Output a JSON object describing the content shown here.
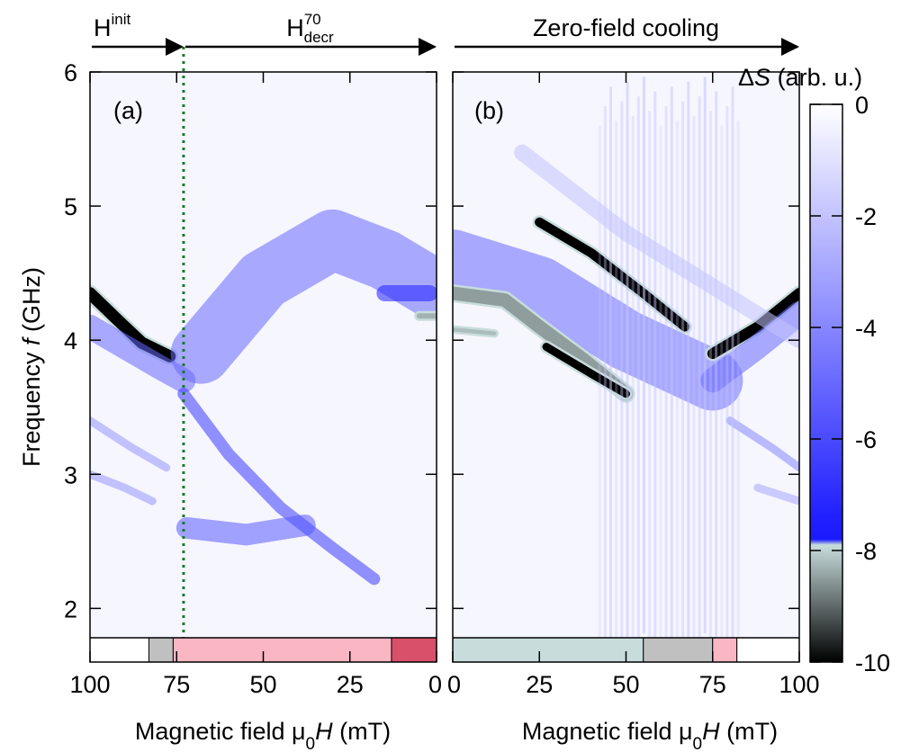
{
  "chart_data": [
    {
      "type": "heatmap",
      "panel_label": "(a)",
      "x_direction": "decreasing",
      "xlabel": "Magnetic field μ0H (mT)",
      "ylabel": "Frequency f (GHz)",
      "xlim": [
        100,
        0
      ],
      "ylim": [
        1.6,
        6.0
      ],
      "x_ticks": [
        "100",
        "75",
        "50",
        "25",
        "0"
      ],
      "x_tick_values": [
        100,
        75,
        50,
        25,
        0
      ],
      "y_ticks": [
        "2",
        "3",
        "4",
        "5",
        "6"
      ],
      "y_tick_values": [
        2,
        3,
        4,
        5,
        6
      ],
      "regime_labels": [
        {
          "text": "H",
          "sup": "init",
          "sub": "",
          "x_from": 100,
          "x_to": 73
        },
        {
          "text": "H",
          "sup": "70",
          "sub": "decr",
          "x_from": 73,
          "x_to": 0
        }
      ],
      "vline_at": 73,
      "vline_color": "#1a7a2a",
      "state_bar": [
        {
          "from": 100,
          "to": 83,
          "color": "#ffffff"
        },
        {
          "from": 83,
          "to": 76,
          "color": "#c0c0c0"
        },
        {
          "from": 76,
          "to": 13,
          "color": "#fbb6c4"
        },
        {
          "from": 13,
          "to": 0,
          "color": "#d9506a"
        }
      ],
      "features": [
        {
          "kind": "ridge",
          "points": [
            [
              100,
              4.35
            ],
            [
              92,
              4.15
            ],
            [
              85,
              3.98
            ],
            [
              77,
              3.88
            ]
          ],
          "delta_s": -10,
          "width": 0.09
        },
        {
          "kind": "ridge",
          "points": [
            [
              100,
              4.1
            ],
            [
              90,
              3.95
            ],
            [
              80,
              3.8
            ],
            [
              73,
              3.7
            ]
          ],
          "delta_s": -5,
          "width": 0.18
        },
        {
          "kind": "ridge",
          "points": [
            [
              73,
              3.6
            ],
            [
              60,
              3.15
            ],
            [
              45,
              2.75
            ],
            [
              30,
              2.45
            ],
            [
              18,
              2.22
            ]
          ],
          "delta_s": -6.5,
          "width": 0.09
        },
        {
          "kind": "ridge",
          "points": [
            [
              72,
              2.6
            ],
            [
              55,
              2.55
            ],
            [
              38,
              2.62
            ]
          ],
          "delta_s": -5.5,
          "width": 0.16
        },
        {
          "kind": "ridge",
          "points": [
            [
              68,
              3.9
            ],
            [
              50,
              4.45
            ],
            [
              30,
              4.75
            ],
            [
              15,
              4.6
            ],
            [
              2,
              4.4
            ]
          ],
          "delta_s": -5,
          "width": 0.45
        },
        {
          "kind": "ridge",
          "points": [
            [
              15,
              4.35
            ],
            [
              8,
              4.35
            ],
            [
              2,
              4.35
            ]
          ],
          "delta_s": -7.5,
          "width": 0.12
        },
        {
          "kind": "ridge",
          "points": [
            [
              5,
              4.18
            ],
            [
              0,
              4.18
            ]
          ],
          "delta_s": -8.3,
          "width": 0.04
        },
        {
          "kind": "ridge",
          "points": [
            [
              100,
              3.4
            ],
            [
              88,
              3.2
            ],
            [
              78,
              3.05
            ]
          ],
          "delta_s": -3.5,
          "width": 0.06
        },
        {
          "kind": "ridge",
          "points": [
            [
              100,
              3.0
            ],
            [
              90,
              2.9
            ],
            [
              82,
              2.8
            ]
          ],
          "delta_s": -3.5,
          "width": 0.06
        }
      ]
    },
    {
      "type": "heatmap",
      "panel_label": "(b)",
      "x_direction": "increasing",
      "xlabel": "Magnetic field μ0H (mT)",
      "ylabel": "",
      "xlim": [
        0,
        100
      ],
      "ylim": [
        1.6,
        6.0
      ],
      "x_ticks": [
        "0",
        "25",
        "50",
        "75",
        "100"
      ],
      "x_tick_values": [
        0,
        25,
        50,
        75,
        100
      ],
      "y_ticks": [
        "2",
        "3",
        "4",
        "5",
        "6"
      ],
      "y_tick_values": [
        2,
        3,
        4,
        5,
        6
      ],
      "regime_labels": [
        {
          "text": "Zero-field cooling",
          "sup": "",
          "sub": "",
          "x_from": 0,
          "x_to": 100
        }
      ],
      "state_bar": [
        {
          "from": 0,
          "to": 55,
          "color": "#c8dcdc"
        },
        {
          "from": 55,
          "to": 75,
          "color": "#c0c0c0"
        },
        {
          "from": 75,
          "to": 82,
          "color": "#fbb6c4"
        },
        {
          "from": 82,
          "to": 100,
          "color": "#ffffff"
        }
      ],
      "features": [
        {
          "kind": "ridge",
          "points": [
            [
              0,
              4.6
            ],
            [
              25,
              4.4
            ],
            [
              50,
              4.0
            ],
            [
              75,
              3.7
            ]
          ],
          "delta_s": -5,
          "width": 0.45
        },
        {
          "kind": "ridge",
          "points": [
            [
              25,
              4.88
            ],
            [
              40,
              4.65
            ],
            [
              55,
              4.35
            ],
            [
              67,
              4.1
            ]
          ],
          "delta_s": -10,
          "width": 0.07
        },
        {
          "kind": "ridge",
          "points": [
            [
              0,
              4.35
            ],
            [
              15,
              4.3
            ],
            [
              25,
              4.1
            ],
            [
              38,
              3.85
            ],
            [
              50,
              3.6
            ]
          ],
          "delta_s": -8.5,
          "width": 0.1
        },
        {
          "kind": "ridge",
          "points": [
            [
              27,
              3.95
            ],
            [
              40,
              3.75
            ],
            [
              50,
              3.6
            ]
          ],
          "delta_s": -10,
          "width": 0.06
        },
        {
          "kind": "ridge",
          "points": [
            [
              0,
              4.08
            ],
            [
              12,
              4.05
            ]
          ],
          "delta_s": -8.2,
          "width": 0.03
        },
        {
          "kind": "ridge",
          "points": [
            [
              75,
              3.9
            ],
            [
              88,
              4.1
            ],
            [
              100,
              4.35
            ]
          ],
          "delta_s": -10,
          "width": 0.08
        },
        {
          "kind": "ridge",
          "points": [
            [
              75,
              3.7
            ],
            [
              88,
              3.95
            ],
            [
              100,
              4.2
            ]
          ],
          "delta_s": -5,
          "width": 0.18
        },
        {
          "kind": "ridge",
          "points": [
            [
              80,
              3.4
            ],
            [
              92,
              3.2
            ],
            [
              100,
              3.05
            ]
          ],
          "delta_s": -4,
          "width": 0.06
        },
        {
          "kind": "ridge",
          "points": [
            [
              88,
              2.9
            ],
            [
              100,
              2.8
            ]
          ],
          "delta_s": -3,
          "width": 0.06
        },
        {
          "kind": "ridge",
          "points": [
            [
              20,
              5.4
            ],
            [
              50,
              4.8
            ],
            [
              75,
              4.4
            ],
            [
              100,
              4.0
            ]
          ],
          "delta_s": -2,
          "width": 0.12
        },
        {
          "kind": "vstreaks",
          "x_from": 42,
          "x_to": 82,
          "y_from": 1.65,
          "y_to": 5.8,
          "delta_s": -1,
          "count": 26
        }
      ]
    }
  ],
  "colorbar": {
    "label_prefix": "Δ",
    "label_symbol": "S",
    "label_suffix": " (arb. u.)",
    "range": [
      -10,
      0
    ],
    "ticks": [
      "0",
      "-2",
      "-4",
      "-6",
      "-8",
      "-10"
    ],
    "tick_values": [
      0,
      -2,
      -4,
      -6,
      -8,
      -10
    ],
    "stops": [
      {
        "v": 0,
        "color": "#ffffff"
      },
      {
        "v": -7.4,
        "color": "#2020ff"
      },
      {
        "v": -7.8,
        "color": "#1a1aff"
      },
      {
        "v": -7.9,
        "color": "#c8dcdc"
      },
      {
        "v": -10,
        "color": "#000000"
      }
    ]
  }
}
